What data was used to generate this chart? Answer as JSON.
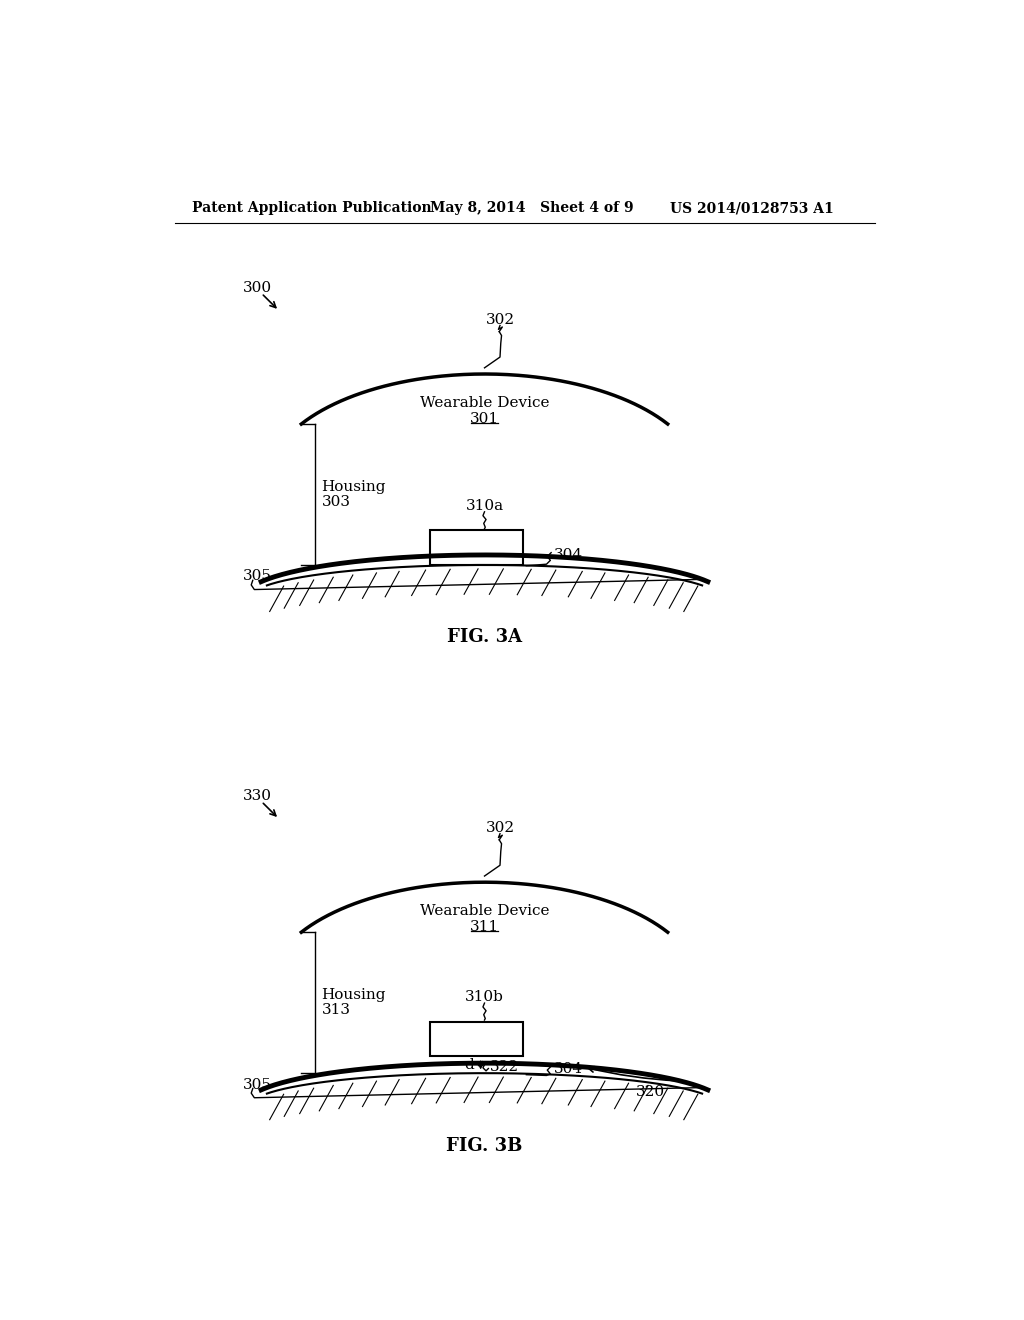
{
  "bg_color": "#ffffff",
  "header_left": "Patent Application Publication",
  "header_mid": "May 8, 2014   Sheet 4 of 9",
  "header_right": "US 2014/0128753 A1",
  "fig3a_label": "FIG. 3A",
  "fig3b_label": "FIG. 3B",
  "label_300": "300",
  "label_330": "330",
  "label_302_a": "302",
  "label_302_b": "302",
  "label_301": "301",
  "label_303": "303",
  "label_304_a": "304",
  "label_304_b": "304",
  "label_305_a": "305",
  "label_305_b": "305",
  "label_310a": "310a",
  "label_310b": "310b",
  "label_311": "311",
  "label_313": "313",
  "label_320": "320",
  "label_322": "322",
  "label_d": "d",
  "wearable_text_3a": "Wearable Device",
  "wearable_num_3a": "301",
  "housing_text": "Housing",
  "wearable_text_3b": "Wearable Device",
  "wearable_num_3b": "311"
}
